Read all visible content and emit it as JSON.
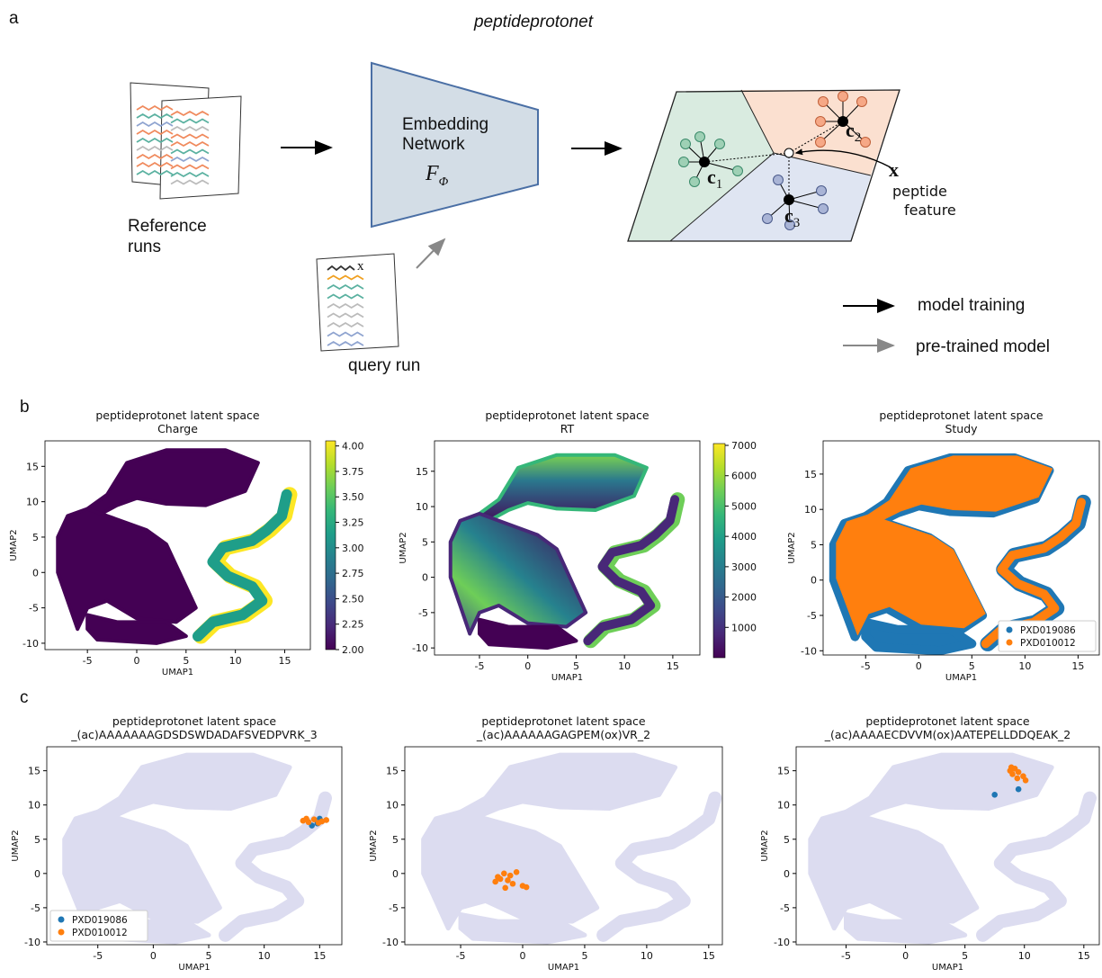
{
  "figure": {
    "panel_labels": [
      "a",
      "b",
      "c"
    ]
  },
  "diagram": {
    "title": "peptideprotonet",
    "reference_label": [
      "Reference",
      "runs"
    ],
    "network_label": [
      "Embedding",
      "Network"
    ],
    "network_symbol": "F",
    "network_symbol_subscript": "Φ",
    "query_label": "query run",
    "query_feature": "x",
    "centroids": [
      {
        "name": "c",
        "index": "1"
      },
      {
        "name": "c",
        "index": "2"
      },
      {
        "name": "c",
        "index": "3"
      }
    ],
    "feature_symbol": "x",
    "feature_label": [
      "peptide",
      "feature"
    ],
    "legend": [
      "model training",
      "pre-trained model"
    ]
  },
  "chart_data": [
    {
      "type": "scatter",
      "title": "peptideprotonet latent space",
      "subtitle": "Charge",
      "xlabel": "UMAP1",
      "ylabel": "UMAP2",
      "xlim": [
        -9.3,
        17.6
      ],
      "ylim": [
        -10.9,
        18.6
      ],
      "xticks": [
        -5,
        0,
        5,
        10,
        15
      ],
      "yticks": [
        -10,
        -5,
        0,
        5,
        10,
        15
      ],
      "colormap": "viridis",
      "clim": [
        2,
        4.05
      ],
      "cticks": [
        {
          "value": 2,
          "label": "2.00"
        },
        2.25,
        {
          "value": 2.5,
          "label": "2.50"
        },
        2.75,
        {
          "value": 3,
          "label": "3.00"
        },
        3.25,
        {
          "value": 3.5,
          "label": "3.50"
        },
        3.75,
        {
          "value": 4,
          "label": "4.00"
        }
      ]
    },
    {
      "type": "scatter",
      "title": "peptideprotonet latent space",
      "subtitle": "RT",
      "xlabel": "UMAP1",
      "ylabel": "UMAP2",
      "xlim": [
        -9.65,
        17.8
      ],
      "ylim": [
        -11,
        19.3
      ],
      "xticks": [
        -5,
        0,
        5,
        10,
        15
      ],
      "yticks": [
        -10,
        -5,
        0,
        5,
        10,
        15
      ],
      "colormap": "viridis",
      "clim": [
        0,
        7060
      ],
      "cticks": [
        1000,
        2000,
        3000,
        4000,
        5000,
        6000,
        7000
      ]
    },
    {
      "type": "scatter",
      "title": "peptideprotonet latent space",
      "subtitle": "Study",
      "xlabel": "UMAP1",
      "ylabel": "UMAP2",
      "xlim": [
        -9,
        17
      ],
      "ylim": [
        -10.6,
        19.7
      ],
      "xticks": [
        -5,
        0,
        5,
        10,
        15
      ],
      "yticks": [
        -10,
        -5,
        0,
        5,
        10,
        15
      ],
      "legend": "lower right",
      "series": [
        {
          "name": "PXD019086",
          "color": "#1f77b4"
        },
        {
          "name": "PXD010012",
          "color": "#ff7f0e"
        }
      ]
    },
    {
      "type": "scatter",
      "title": "peptideprotonet latent space",
      "subtitle": "_(ac)AAAAAAAGDSDSWDADAFSVEDPVRK_3",
      "xlabel": "UMAP1",
      "ylabel": "UMAP2",
      "xlim": [
        -9.6,
        17
      ],
      "ylim": [
        -10.4,
        18.5
      ],
      "xticks": [
        -5,
        0,
        5,
        10,
        15
      ],
      "yticks": [
        -10,
        -5,
        0,
        5,
        10,
        15
      ],
      "legend": "lower left",
      "series": [
        {
          "name": "PXD019086",
          "color": "#1f77b4",
          "x": [
            15,
            14.3,
            14.8
          ],
          "values": [
            8,
            7,
            7.3
          ]
        },
        {
          "name": "PXD010012",
          "color": "#ff7f0e",
          "x": [
            13.5,
            14,
            14.5,
            15.2,
            15.6,
            13.8,
            14.9
          ],
          "values": [
            7.7,
            7.5,
            7.9,
            7.6,
            7.8,
            8,
            7.4
          ]
        }
      ]
    },
    {
      "type": "scatter",
      "title": "peptideprotonet latent space",
      "subtitle": "_(ac)AAAAAAGAGPEM(ox)VR_2",
      "xlabel": "UMAP1",
      "ylabel": "UMAP2",
      "xlim": [
        -9.5,
        16.1
      ],
      "ylim": [
        -10.4,
        18.5
      ],
      "xticks": [
        -5,
        0,
        5,
        10,
        15
      ],
      "yticks": [
        -10,
        -5,
        0,
        5,
        10,
        15
      ],
      "series": [
        {
          "name": "PXD019086",
          "color": "#1f77b4",
          "x": [],
          "values": []
        },
        {
          "name": "PXD010012",
          "color": "#ff7f0e",
          "x": [
            -2,
            -1.5,
            -1,
            -0.5,
            -1.2,
            -1.8,
            -0.8,
            0,
            0.3,
            -2.2,
            -1.4
          ],
          "values": [
            -0.5,
            0,
            -0.3,
            0.2,
            -1,
            -0.8,
            -1.5,
            -1.8,
            -2,
            -1.2,
            -2.1
          ]
        }
      ]
    },
    {
      "type": "scatter",
      "title": "peptideprotonet latent space",
      "subtitle": "_(ac)AAAAECDVVM(ox)AATEPELLDDQEAK_2",
      "xlabel": "UMAP1",
      "ylabel": "UMAP2",
      "xlim": [
        -9.2,
        16.3
      ],
      "ylim": [
        -10.4,
        18.5
      ],
      "xticks": [
        -5,
        0,
        5,
        10,
        15
      ],
      "yticks": [
        -10,
        -5,
        0,
        5,
        10,
        15
      ],
      "series": [
        {
          "name": "PXD019086",
          "color": "#1f77b4",
          "x": [
            7.5,
            9.5
          ],
          "values": [
            11.5,
            12.3
          ]
        },
        {
          "name": "PXD010012",
          "color": "#ff7f0e",
          "x": [
            8.8,
            9.2,
            9.5,
            9.9,
            9,
            9.4,
            10.1,
            8.9
          ],
          "values": [
            15,
            15.3,
            14.8,
            14.2,
            14.5,
            13.9,
            13.6,
            15.5
          ]
        }
      ]
    }
  ]
}
